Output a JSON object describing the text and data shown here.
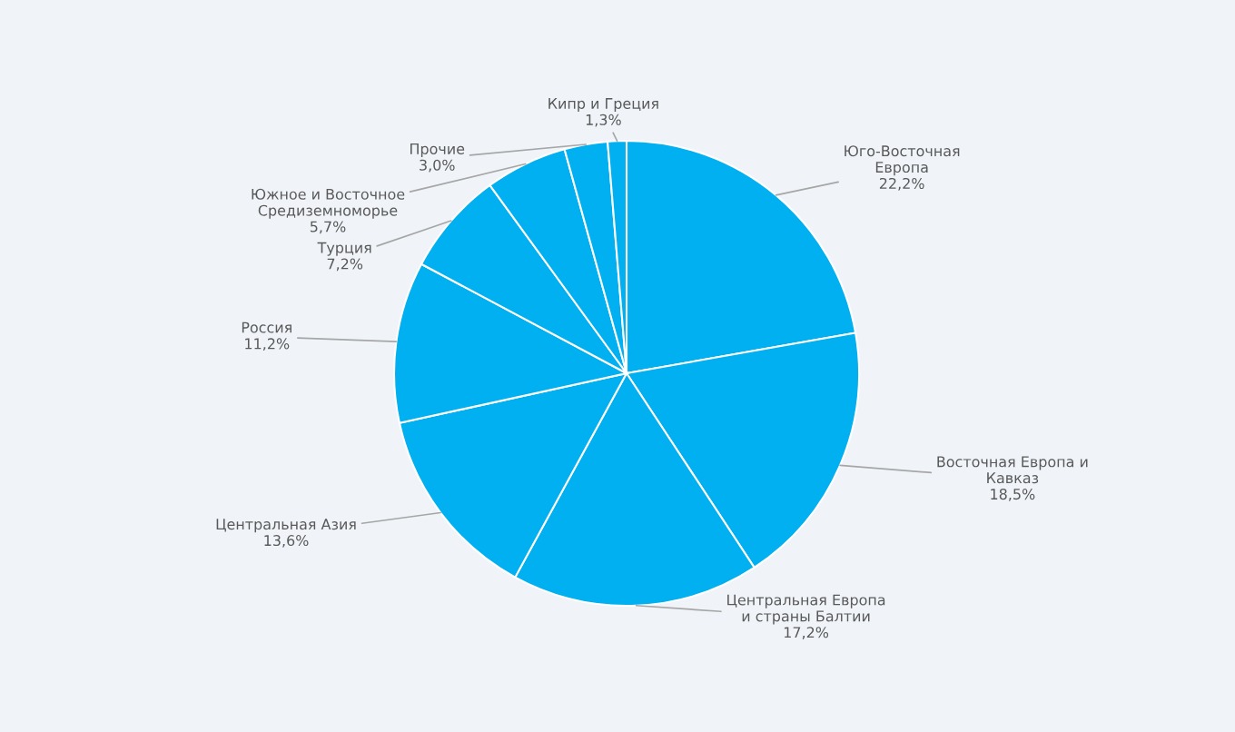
{
  "chart_data": {
    "type": "pie",
    "categories": [
      "Юго-Восточная\nЕвропа",
      "Восточная Европа и\nКавказ",
      "Центральная Европа\nи страны Балтии",
      "Центральная Азия",
      "Россия",
      "Турция",
      "Южное и Восточное\nСредиземноморье",
      "Прочие",
      "Кипр и Греция"
    ],
    "values": [
      22.2,
      18.5,
      17.2,
      13.6,
      11.2,
      7.2,
      5.7,
      3.0,
      1.3
    ],
    "value_labels": [
      "22,2%",
      "18,5%",
      "17,2%",
      "13,6%",
      "11,2%",
      "7,2%",
      "5,7%",
      "3,0%",
      "1,3%"
    ],
    "colors": [
      "#00b0f0",
      "#00b0f0",
      "#00b0f0",
      "#00b0f0",
      "#00b0f0",
      "#00b0f0",
      "#00b0f0",
      "#00b0f0",
      "#00b0f0"
    ],
    "legend": false
  }
}
